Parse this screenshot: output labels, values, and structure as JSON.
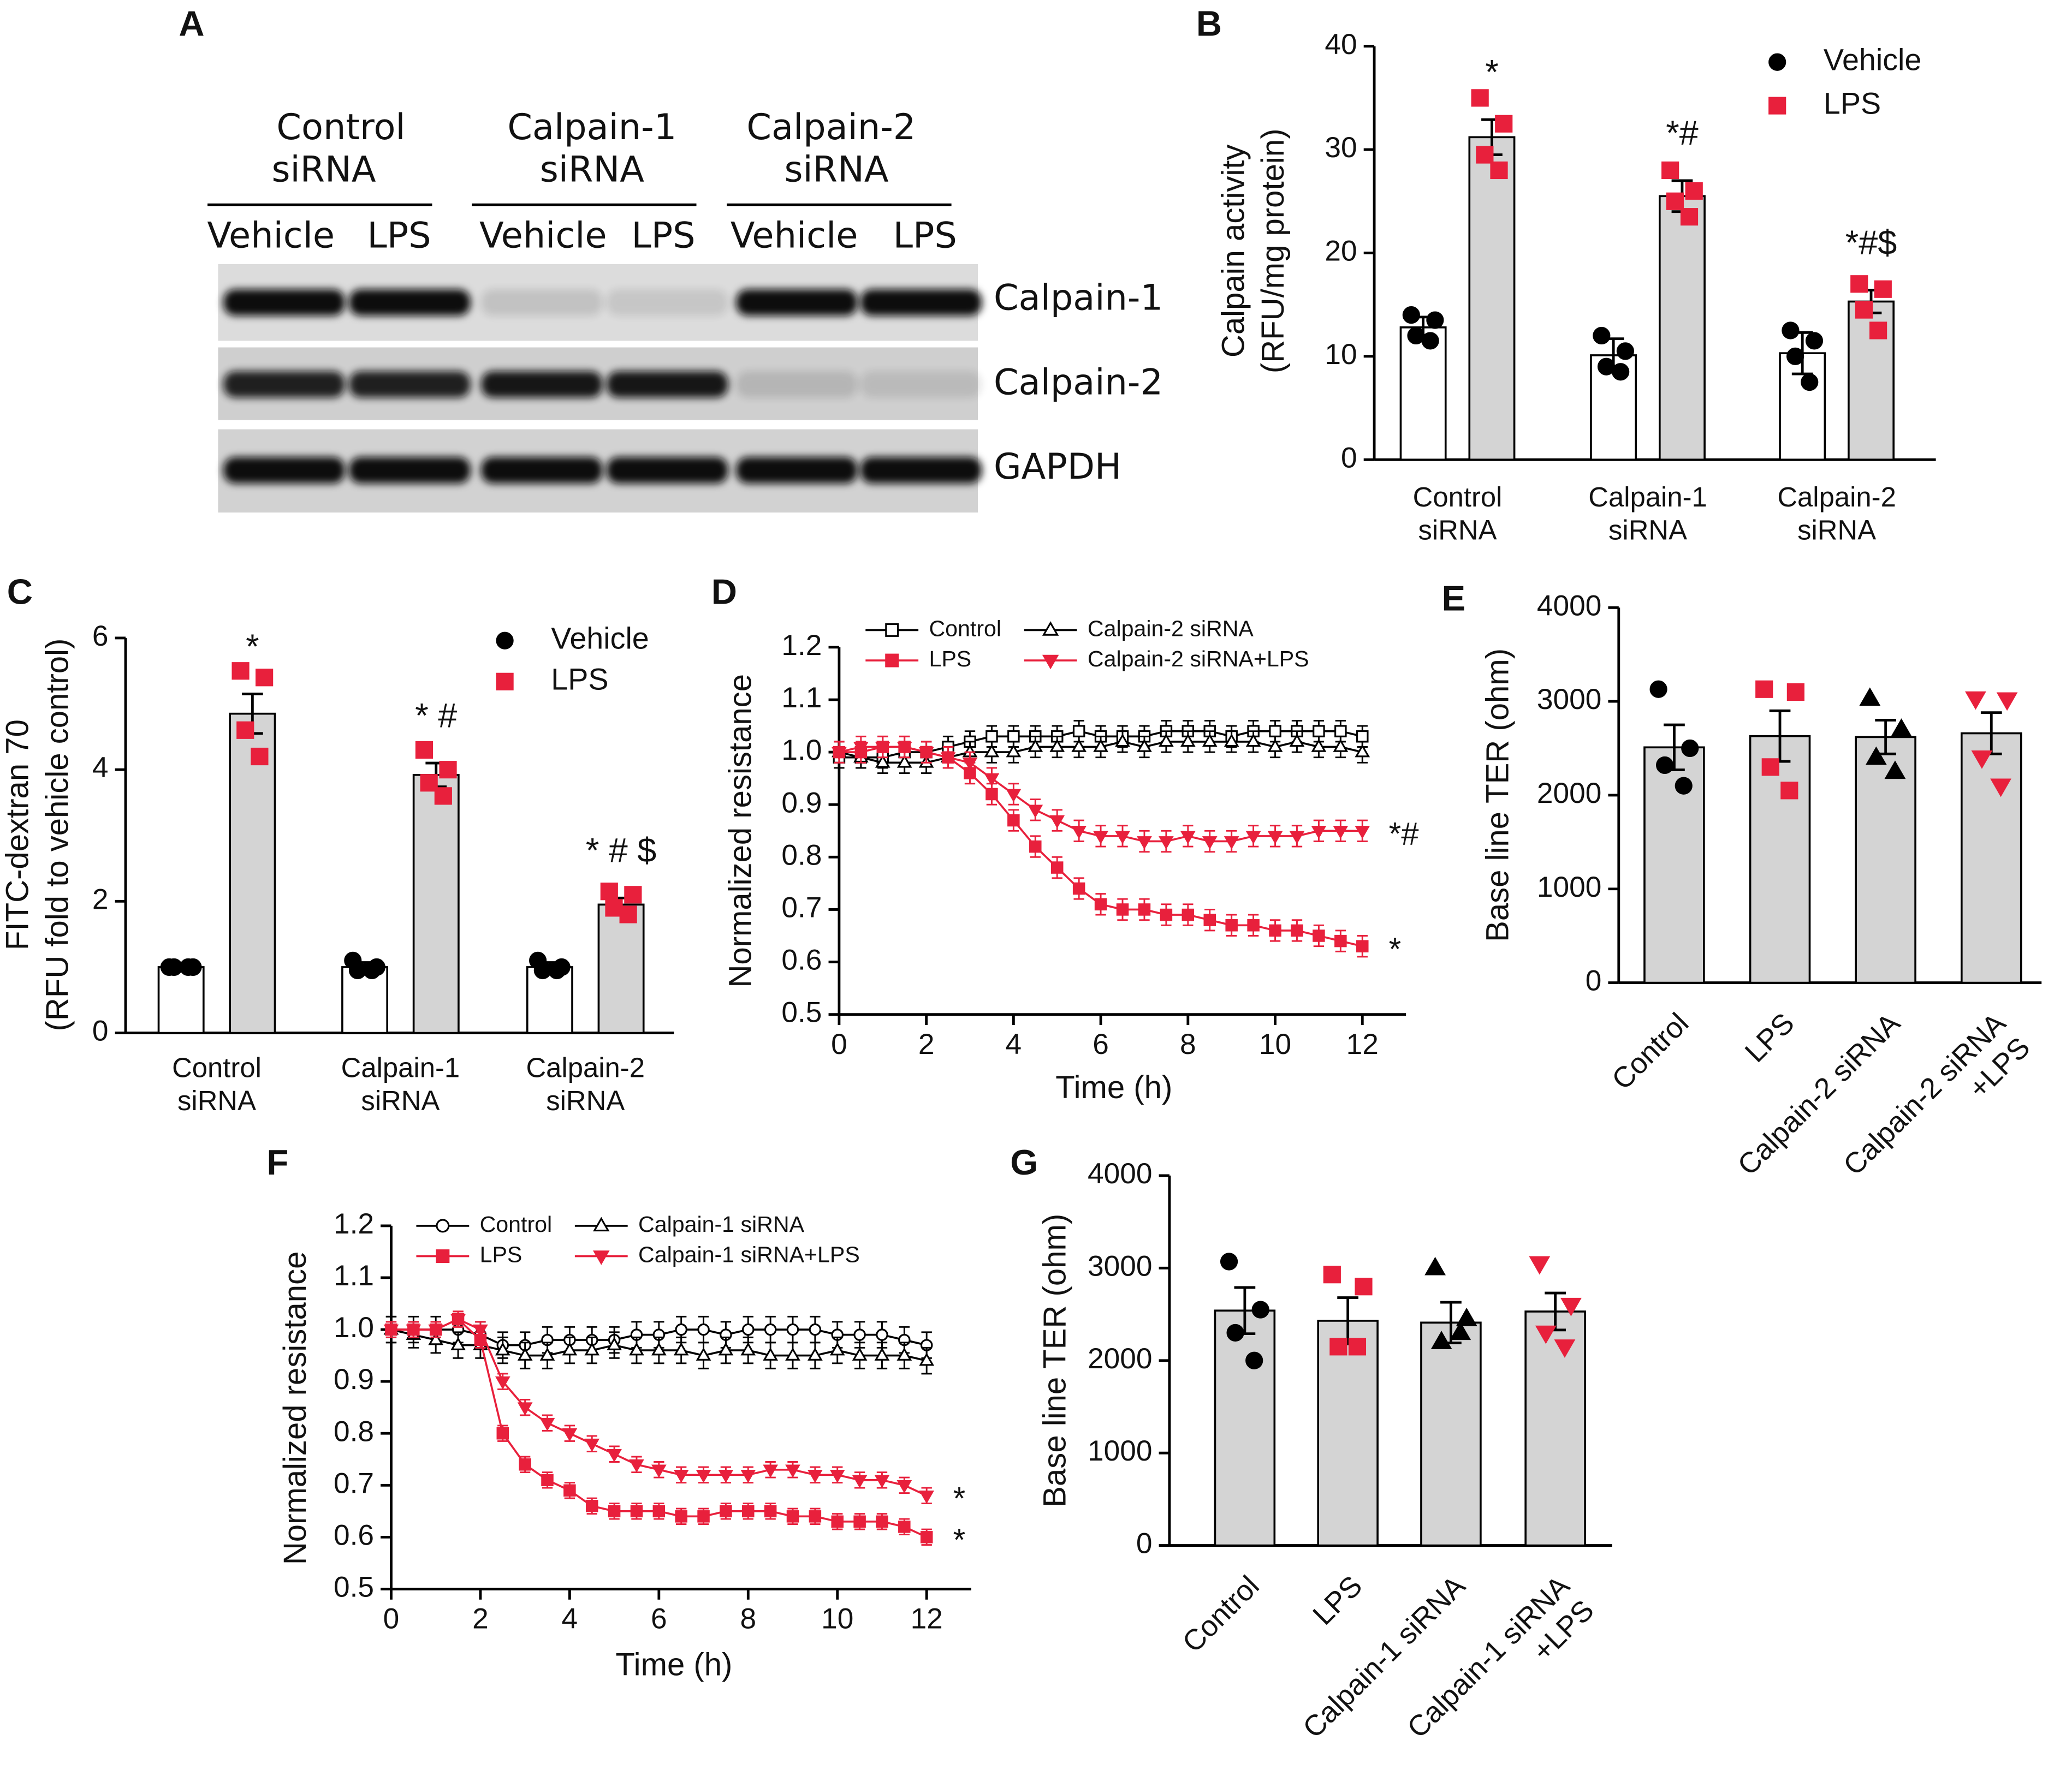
{
  "blot": {
    "label": "A",
    "groups": [
      [
        "Control",
        "siRNA"
      ],
      [
        "Calpain-1",
        "siRNA"
      ],
      [
        "Calpain-2",
        "siRNA"
      ]
    ],
    "lanes": [
      "Vehicle",
      "LPS",
      "Vehicle",
      "LPS",
      "Vehicle",
      "LPS"
    ],
    "rows": [
      "Calpain-1",
      "Calpain-2",
      "GAPDH"
    ]
  },
  "chart_data": [
    {
      "type": "bar",
      "label": "B",
      "ylabel": [
        "Calpain activity",
        "(RFU/mg protein)"
      ],
      "categories": [
        [
          "Control",
          "siRNA"
        ],
        [
          "Calpain-1",
          "siRNA"
        ],
        [
          "Calpain-2",
          "siRNA"
        ]
      ],
      "ylim": [
        0,
        40
      ],
      "yticks": [
        0,
        10,
        20,
        30,
        40
      ],
      "series": [
        {
          "name": "Vehicle",
          "color": "#000000",
          "bar_color": "#ffffff",
          "marker": "circle",
          "values": [
            12.8,
            10.1,
            10.3
          ],
          "errors": [
            1.0,
            1.6,
            2.0
          ],
          "points": [
            [
              14,
              13.5,
              12,
              11.5
            ],
            [
              12,
              10.5,
              9,
              8.5
            ],
            [
              12.5,
              11.5,
              10,
              7.5
            ]
          ]
        },
        {
          "name": "LPS",
          "color": "#e8203c",
          "bar_color": "#d4d4d4",
          "marker": "square",
          "values": [
            31.2,
            25.5,
            15.3
          ],
          "errors": [
            1.7,
            1.5,
            1.1
          ],
          "points": [
            [
              35,
              32.5,
              29.5,
              28
            ],
            [
              28,
              26,
              25,
              23.5
            ],
            [
              17,
              16.5,
              14.5,
              12.5
            ]
          ],
          "annotations": [
            "*",
            "*#",
            "*#$"
          ]
        }
      ]
    },
    {
      "type": "bar",
      "label": "C",
      "ylabel": [
        "FITC-dextran 70",
        "(RFU fold to vehicle control)"
      ],
      "categories": [
        [
          "Control",
          "siRNA"
        ],
        [
          "Calpain-1",
          "siRNA"
        ],
        [
          "Calpain-2",
          "siRNA"
        ]
      ],
      "ylim": [
        0,
        6
      ],
      "yticks": [
        0,
        2,
        4,
        6
      ],
      "series": [
        {
          "name": "Vehicle",
          "color": "#000000",
          "bar_color": "#ffffff",
          "marker": "circle",
          "values": [
            1.0,
            1.0,
            1.0
          ],
          "errors": [
            0.02,
            0.07,
            0.07
          ],
          "points": [
            [
              1,
              1,
              1,
              1
            ],
            [
              1.1,
              1.0,
              0.95,
              0.95
            ],
            [
              1.1,
              1.0,
              0.95,
              0.95
            ]
          ]
        },
        {
          "name": "LPS",
          "color": "#e8203c",
          "bar_color": "#d4d4d4",
          "marker": "square",
          "values": [
            4.85,
            3.92,
            1.95
          ],
          "errors": [
            0.3,
            0.18,
            0.1
          ],
          "points": [
            [
              5.5,
              5.4,
              4.6,
              4.2
            ],
            [
              4.3,
              4.0,
              3.8,
              3.6
            ],
            [
              2.15,
              2.1,
              1.9,
              1.8
            ]
          ],
          "annotations": [
            "*",
            "* #",
            "* # $"
          ]
        }
      ]
    },
    {
      "type": "line",
      "label": "D",
      "ylabel": [
        "Normalized resistance"
      ],
      "xlabel": "Time (h)",
      "xlim": [
        0,
        13
      ],
      "xticks": [
        0,
        2,
        4,
        6,
        8,
        10,
        12
      ],
      "ylim": [
        0.5,
        1.2
      ],
      "yticks": [
        0.5,
        0.6,
        0.7,
        0.8,
        0.9,
        {
          "value": 1,
          "label": "1.0"
        },
        1.1,
        1.2
      ],
      "x": [
        0,
        0.5,
        1,
        1.5,
        2,
        2.5,
        3,
        3.5,
        4,
        4.5,
        5,
        5.5,
        6,
        6.5,
        7,
        7.5,
        8,
        8.5,
        9,
        9.5,
        10,
        10.5,
        11,
        11.5,
        12
      ],
      "series": [
        {
          "name": "Control",
          "color": "#000000",
          "marker": "square",
          "filled": false,
          "error": 0.02,
          "values": [
            0.99,
            0.99,
            0.99,
            1.0,
            1.0,
            1.01,
            1.02,
            1.03,
            1.03,
            1.03,
            1.03,
            1.04,
            1.03,
            1.03,
            1.03,
            1.04,
            1.04,
            1.04,
            1.03,
            1.04,
            1.04,
            1.04,
            1.04,
            1.04,
            1.03
          ]
        },
        {
          "name": "Calpain-2 siRNA",
          "color": "#000000",
          "marker": "triangle",
          "filled": false,
          "error": 0.02,
          "values": [
            1.0,
            0.99,
            0.98,
            0.98,
            0.98,
            0.99,
            1.0,
            1.0,
            1.0,
            1.01,
            1.01,
            1.01,
            1.01,
            1.02,
            1.01,
            1.02,
            1.02,
            1.02,
            1.02,
            1.02,
            1.01,
            1.02,
            1.01,
            1.01,
            1.0
          ]
        },
        {
          "name": "LPS",
          "color": "#e8203c",
          "marker": "square",
          "filled": true,
          "error": 0.02,
          "annotation": "*",
          "values": [
            1.0,
            1.0,
            1.01,
            1.01,
            1.0,
            0.99,
            0.96,
            0.92,
            0.87,
            0.82,
            0.78,
            0.74,
            0.71,
            0.7,
            0.7,
            0.69,
            0.69,
            0.68,
            0.67,
            0.67,
            0.66,
            0.66,
            0.65,
            0.64,
            0.63
          ]
        },
        {
          "name": "Calpain-2 siRNA+LPS",
          "color": "#e8203c",
          "marker": "triangle-down",
          "filled": true,
          "error": 0.02,
          "annotation": "*#",
          "values": [
            1.0,
            1.01,
            1.01,
            1.01,
            1.0,
            0.99,
            0.98,
            0.95,
            0.92,
            0.89,
            0.87,
            0.85,
            0.84,
            0.84,
            0.83,
            0.83,
            0.84,
            0.83,
            0.83,
            0.84,
            0.84,
            0.84,
            0.85,
            0.85,
            0.85
          ]
        }
      ]
    },
    {
      "type": "bar",
      "label": "E",
      "ylabel": [
        "Base line TER (ohm)"
      ],
      "categories": [
        [
          "Control"
        ],
        [
          "LPS"
        ],
        [
          "Calpain-2 siRNA"
        ],
        [
          "Calpain-2 siRNA",
          "+LPS"
        ]
      ],
      "ylim": [
        0,
        4000
      ],
      "yticks": [
        0,
        1000,
        2000,
        3000,
        4000
      ],
      "bar_color": "#d4d4d4",
      "colors": [
        "#000000",
        "#e8203c",
        "#000000",
        "#e8203c"
      ],
      "markers": [
        "circle",
        "square",
        "triangle",
        "triangle-down"
      ],
      "values": [
        2510,
        2630,
        2620,
        2660
      ],
      "errors": [
        240,
        270,
        180,
        220
      ],
      "points": [
        [
          3130,
          2500,
          2320,
          2100
        ],
        [
          3130,
          3100,
          2300,
          2050
        ],
        [
          3030,
          2700,
          2400,
          2250
        ],
        [
          3030,
          3020,
          2400,
          2100
        ]
      ]
    },
    {
      "type": "line",
      "label": "F",
      "ylabel": [
        "Normalized resistance"
      ],
      "xlabel": "Time (h)",
      "xlim": [
        0,
        13
      ],
      "xticks": [
        0,
        2,
        4,
        6,
        8,
        10,
        12
      ],
      "ylim": [
        0.5,
        1.2
      ],
      "yticks": [
        0.5,
        0.6,
        0.7,
        0.8,
        0.9,
        {
          "value": 1,
          "label": "1.0"
        },
        1.1,
        1.2
      ],
      "x": [
        0,
        0.5,
        1,
        1.5,
        2,
        2.5,
        3,
        3.5,
        4,
        4.5,
        5,
        5.5,
        6,
        6.5,
        7,
        7.5,
        8,
        8.5,
        9,
        9.5,
        10,
        10.5,
        11,
        11.5,
        12
      ],
      "series": [
        {
          "name": "Control",
          "color": "#000000",
          "marker": "circle",
          "filled": false,
          "error": 0.025,
          "values": [
            1.0,
            1.0,
            1.0,
            1.0,
            0.99,
            0.97,
            0.97,
            0.98,
            0.98,
            0.98,
            0.98,
            0.99,
            0.99,
            1.0,
            1.0,
            0.99,
            1.0,
            1.0,
            1.0,
            1.0,
            0.99,
            0.99,
            0.99,
            0.98,
            0.97
          ]
        },
        {
          "name": "Calpain-1 siRNA",
          "color": "#000000",
          "marker": "triangle",
          "filled": false,
          "error": 0.025,
          "values": [
            1.0,
            0.99,
            0.98,
            0.97,
            0.97,
            0.96,
            0.95,
            0.95,
            0.96,
            0.96,
            0.97,
            0.96,
            0.96,
            0.96,
            0.95,
            0.96,
            0.96,
            0.95,
            0.95,
            0.95,
            0.96,
            0.95,
            0.95,
            0.95,
            0.94
          ]
        },
        {
          "name": "LPS",
          "color": "#e8203c",
          "marker": "square",
          "filled": true,
          "error": 0.015,
          "annotation": "*",
          "values": [
            1.0,
            1.0,
            1.0,
            1.02,
            0.98,
            0.8,
            0.74,
            0.71,
            0.69,
            0.66,
            0.65,
            0.65,
            0.65,
            0.64,
            0.64,
            0.65,
            0.65,
            0.65,
            0.64,
            0.64,
            0.63,
            0.63,
            0.63,
            0.62,
            0.6
          ]
        },
        {
          "name": "Calpain-1 siRNA+LPS",
          "color": "#e8203c",
          "marker": "triangle-down",
          "filled": true,
          "error": 0.015,
          "annotation": "*",
          "values": [
            1.0,
            1.0,
            1.0,
            1.02,
            1.0,
            0.9,
            0.85,
            0.82,
            0.8,
            0.78,
            0.76,
            0.74,
            0.73,
            0.72,
            0.72,
            0.72,
            0.72,
            0.73,
            0.73,
            0.72,
            0.72,
            0.71,
            0.71,
            0.7,
            0.68
          ]
        }
      ]
    },
    {
      "type": "bar",
      "label": "G",
      "ylabel": [
        "Base line TER (ohm)"
      ],
      "categories": [
        [
          "Control"
        ],
        [
          "LPS"
        ],
        [
          "Calpain-1 siRNA"
        ],
        [
          "Calpain-1 siRNA",
          "+LPS"
        ]
      ],
      "ylim": [
        0,
        4000
      ],
      "yticks": [
        0,
        1000,
        2000,
        3000,
        4000
      ],
      "bar_color": "#d4d4d4",
      "colors": [
        "#000000",
        "#e8203c",
        "#000000",
        "#e8203c"
      ],
      "markers": [
        "circle",
        "square",
        "triangle",
        "triangle-down"
      ],
      "values": [
        2540,
        2430,
        2410,
        2530
      ],
      "errors": [
        250,
        250,
        220,
        200
      ],
      "points": [
        [
          3070,
          2550,
          2300,
          2000
        ],
        [
          2930,
          2800,
          2150,
          2150
        ],
        [
          3000,
          2450,
          2200,
          2300
        ],
        [
          3050,
          2600,
          2300,
          2150
        ]
      ]
    }
  ]
}
